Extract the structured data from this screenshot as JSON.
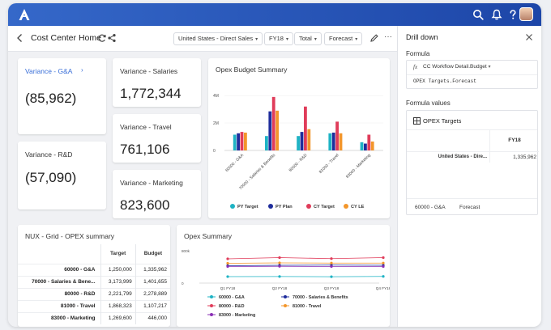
{
  "app": {
    "logo": "brand-logo",
    "topbar_icons": [
      "search-icon",
      "bell-icon",
      "help-icon",
      "avatar"
    ]
  },
  "header": {
    "title": "Cost Center Home",
    "filters": [
      {
        "label": "United States - Direct Sales"
      },
      {
        "label": "FY18"
      },
      {
        "label": "Total"
      },
      {
        "label": "Forecast"
      }
    ]
  },
  "kpis": [
    {
      "label": "Variance - G&A",
      "value": "(85,962)"
    },
    {
      "label": "Variance - R&D",
      "value": "(57,090)"
    },
    {
      "label": "Variance - Salaries",
      "value": "1,772,344"
    },
    {
      "label": "Variance - Travel",
      "value": "761,106"
    },
    {
      "label": "Variance - Marketing",
      "value": "823,600"
    }
  ],
  "bar_chart_card": {
    "title": "Opex Budget Summary"
  },
  "grid": {
    "title": "NUX - Grid - OPEX summary",
    "columns": [
      "Target",
      "Budget"
    ],
    "rows": [
      {
        "label": "60000 - G&A",
        "target": "1,250,000",
        "budget": "1,335,962"
      },
      {
        "label": "70000 - Salaries & Bene...",
        "target": "3,173,999",
        "budget": "1,401,655"
      },
      {
        "label": "80000 - R&D",
        "target": "2,221,799",
        "budget": "2,278,889"
      },
      {
        "label": "81000 - Travel",
        "target": "1,868,323",
        "budget": "1,107,217"
      },
      {
        "label": "83000 - Marketing",
        "target": "1,269,600",
        "budget": "446,000"
      }
    ]
  },
  "line_chart_card": {
    "title": "Opex Summary"
  },
  "drill": {
    "title": "Drill down",
    "formula_label": "Formula",
    "formula_ref": "CC Workflow Detail.Budget",
    "formula_text": "OPEX Targets.Forecast",
    "values_label": "Formula values",
    "values_header": "OPEX Targets",
    "col": "FY18",
    "row_label": "United States - Dire...",
    "row_value": "1,335,962",
    "foot_account": "60000 - G&A",
    "foot_version": "Forecast"
  },
  "chart_data": [
    {
      "type": "bar",
      "title": "Opex Budget Summary",
      "categories": [
        "60000 - G&A",
        "70000 - Salaries & Benefits",
        "80000 - R&D",
        "81000 - Travel",
        "83000 - Marketing"
      ],
      "series": [
        {
          "name": "PY Target",
          "color": "#1eb3c4",
          "values": [
            1.15,
            1.05,
            1.05,
            1.25,
            0.6
          ]
        },
        {
          "name": "PY Plan",
          "color": "#1f2d9c",
          "values": [
            1.25,
            2.85,
            1.35,
            1.3,
            0.5
          ]
        },
        {
          "name": "CY Target",
          "color": "#e03c5a",
          "values": [
            1.35,
            3.9,
            3.2,
            2.1,
            1.15
          ]
        },
        {
          "name": "CY LE",
          "color": "#f3962b",
          "values": [
            1.3,
            2.9,
            1.55,
            1.25,
            0.65
          ]
        }
      ],
      "ylim": [
        0,
        4.6
      ],
      "ytick_labels": [
        "4M",
        "2M",
        "0"
      ],
      "yticks": [
        4,
        2,
        0
      ]
    },
    {
      "type": "line",
      "title": "Opex Summary",
      "categories": [
        "Q1 FY18",
        "Q2 FY18",
        "Q3 FY18",
        "Q4 FY18"
      ],
      "series": [
        {
          "name": "60000 - G&A",
          "color": "#1eb3c4",
          "values": [
            160,
            162,
            158,
            165
          ]
        },
        {
          "name": "70000 - Salaries & Benefits",
          "color": "#1f2d9c",
          "values": [
            430,
            440,
            445,
            440
          ]
        },
        {
          "name": "80000 - R&D",
          "color": "#e03c5a",
          "values": [
            600,
            630,
            605,
            630
          ]
        },
        {
          "name": "81000 - Travel",
          "color": "#f3962b",
          "values": [
            490,
            500,
            495,
            495
          ]
        },
        {
          "name": "83000 - Marketing",
          "color": "#8a2fb5",
          "values": [
            410,
            415,
            410,
            410
          ]
        }
      ],
      "ylim": [
        0,
        800
      ],
      "ytick_labels": [
        "800k",
        "0"
      ],
      "yticks": [
        800,
        0
      ]
    }
  ]
}
